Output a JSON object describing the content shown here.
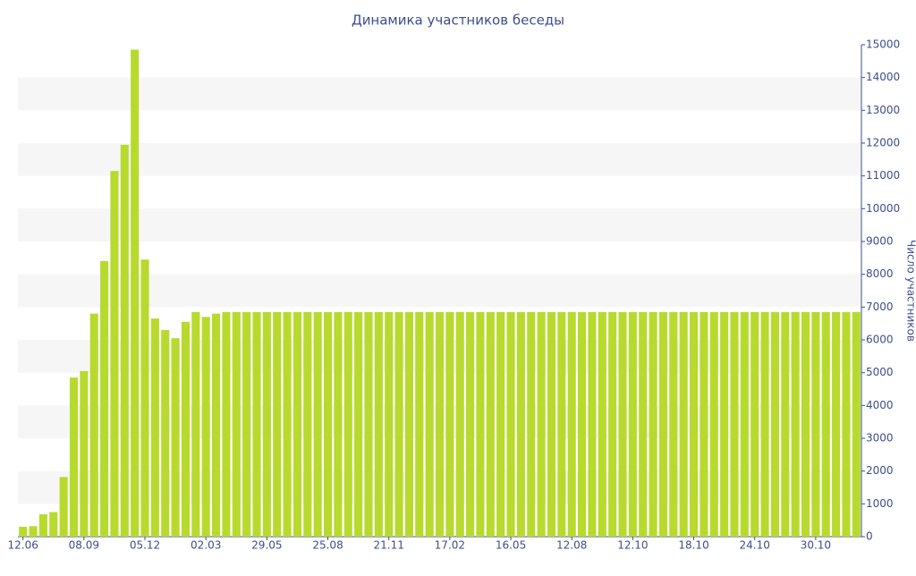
{
  "chart_data": {
    "type": "bar",
    "title": "Динамика участников беседы",
    "y_label": "Число участников",
    "categories": [
      "12.06",
      null,
      null,
      null,
      null,
      null,
      "08.09",
      null,
      null,
      null,
      null,
      null,
      "05.12",
      null,
      null,
      null,
      null,
      null,
      "02.03",
      null,
      null,
      null,
      null,
      null,
      "29.05",
      null,
      null,
      null,
      null,
      null,
      "25.08",
      null,
      null,
      null,
      null,
      null,
      "21.11",
      null,
      null,
      null,
      null,
      null,
      "17.02",
      null,
      null,
      null,
      null,
      null,
      "16.05",
      null,
      null,
      null,
      null,
      null,
      "12.08",
      null,
      null,
      null,
      null,
      null,
      "12.10",
      null,
      null,
      null,
      null,
      null,
      "18.10",
      null,
      null,
      null,
      null,
      null,
      "24.10",
      null,
      null,
      null,
      null,
      null,
      "30.10",
      null,
      null,
      null,
      null
    ],
    "values": [
      300,
      320,
      680,
      750,
      1820,
      4850,
      5050,
      6800,
      8400,
      11150,
      11950,
      14850,
      8450,
      6650,
      6300,
      6050,
      6550,
      6850,
      6700,
      6800,
      6850,
      6850,
      6850,
      6850,
      6850,
      6850,
      6850,
      6850,
      6850,
      6850,
      6850,
      6850,
      6850,
      6850,
      6850,
      6850,
      6850,
      6850,
      6850,
      6850,
      6850,
      6850,
      6850,
      6850,
      6850,
      6850,
      6850,
      6850,
      6850,
      6850,
      6850,
      6850,
      6850,
      6850,
      6850,
      6850,
      6850,
      6850,
      6850,
      6850,
      6850,
      6850,
      6850,
      6850,
      6850,
      6850,
      6850,
      6850,
      6850,
      6850,
      6850,
      6850,
      6850,
      6850,
      6850,
      6850,
      6850,
      6850,
      6850,
      6850,
      6850,
      6850,
      6850
    ],
    "color": "#b8da2e",
    "ylim": [
      0,
      15000
    ],
    "yticks": [
      0,
      1000,
      2000,
      3000,
      4000,
      5000,
      6000,
      7000,
      8000,
      9000,
      10000,
      11000,
      12000,
      13000,
      14000,
      15000
    ],
    "y_axis_side": "right",
    "grid": true
  }
}
